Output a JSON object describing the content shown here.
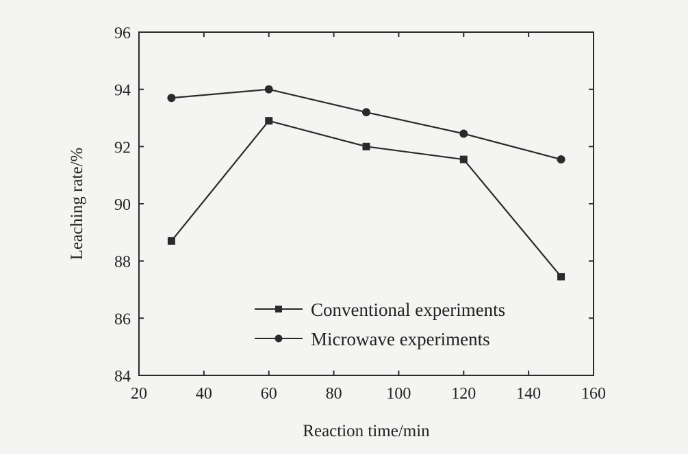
{
  "chart_data": {
    "type": "line",
    "xlabel": "Reaction time/min",
    "ylabel": "Leaching rate/%",
    "xlim": [
      20,
      160
    ],
    "ylim": [
      84,
      96
    ],
    "xticks": [
      20,
      40,
      60,
      80,
      100,
      120,
      140,
      160
    ],
    "yticks": [
      84,
      86,
      88,
      90,
      92,
      94,
      96
    ],
    "grid": false,
    "legend_position": "lower-right",
    "x": [
      30,
      60,
      90,
      120,
      150
    ],
    "series": [
      {
        "name": "Conventional experiments",
        "marker": "square",
        "color": "#2a2a2a",
        "values": [
          88.7,
          92.9,
          92.0,
          91.55,
          87.45
        ]
      },
      {
        "name": "Microwave experiments",
        "marker": "circle",
        "color": "#2a2a2a",
        "values": [
          93.7,
          94.0,
          93.2,
          92.45,
          91.55
        ]
      }
    ]
  }
}
